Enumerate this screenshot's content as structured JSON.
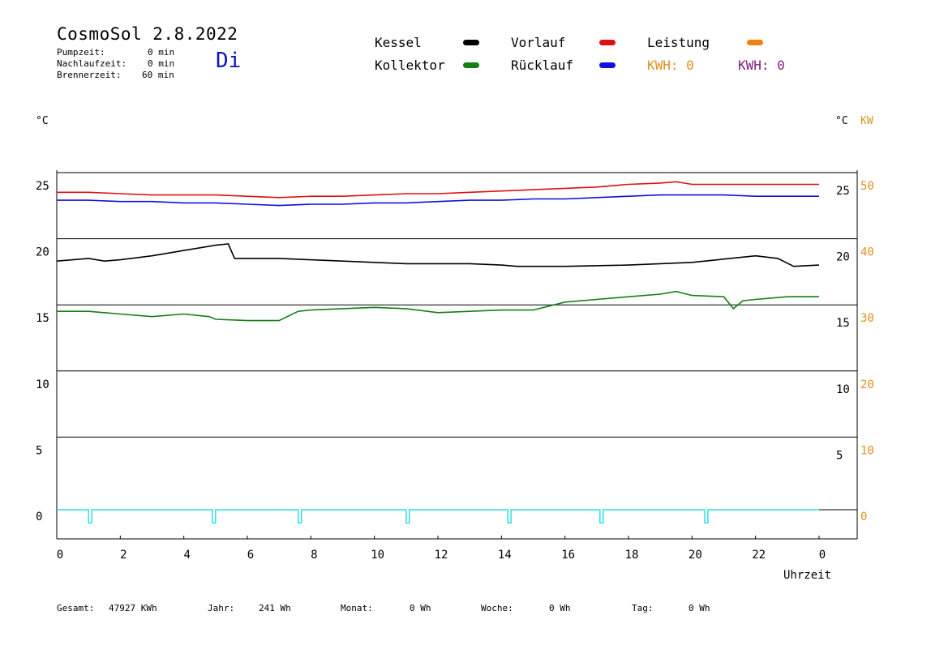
{
  "header": {
    "title": "CosmoSol 2.8.2022",
    "day": "Di",
    "times": [
      {
        "label": "Pumpzeit:",
        "value": "0 min"
      },
      {
        "label": "Nachlaufzeit:",
        "value": "0 min"
      },
      {
        "label": "Brennerzeit:",
        "value": "60 min"
      }
    ]
  },
  "legend": {
    "kessel": "Kessel",
    "kollektor": "Kollektor",
    "vorlauf": "Vorlauf",
    "ruecklauf": "Rücklauf",
    "leistung": "Leistung",
    "kwh1": "KWH: 0",
    "kwh2": "KWH: 0"
  },
  "colors": {
    "kessel": "#000000",
    "kollektor": "#128012",
    "vorlauf": "#e01010",
    "ruecklauf": "#1010e0",
    "leistung": "#f08010",
    "kwh1": "#e09020",
    "kwh2": "#802080",
    "pump": "#20e0e0",
    "day": "#1010c8"
  },
  "units": {
    "left": "°C",
    "right_c": "°C",
    "right_kw": "KW"
  },
  "footer": {
    "gesamt_label": "Gesamt:",
    "gesamt_value": "47927 KWh",
    "jahr_label": "Jahr:",
    "jahr_value": "241 Wh",
    "monat_label": "Monat:",
    "monat_value": "0 Wh",
    "woche_label": "Woche:",
    "woche_value": "0 Wh",
    "tag_label": "Tag:",
    "tag_value": "0 Wh"
  },
  "chart_data": {
    "type": "line",
    "xlabel": "Uhrzeit",
    "x_ticks": [
      "0",
      "2",
      "4",
      "6",
      "8",
      "10",
      "12",
      "14",
      "16",
      "18",
      "20",
      "22",
      "0"
    ],
    "xlim": [
      0,
      24
    ],
    "ylim": [
      -2,
      26
    ],
    "y_left_ticks": [
      0,
      5,
      10,
      15,
      20,
      25
    ],
    "y_right_ticks": [
      5,
      10,
      15,
      20,
      25
    ],
    "y_kw_ticks": [
      0,
      10,
      20,
      30,
      40,
      50
    ],
    "grid": "horizontal",
    "series": [
      {
        "name": "Vorlauf",
        "color": "#e01010",
        "x": [
          0,
          1,
          2,
          3,
          4,
          5,
          6,
          7,
          8,
          9,
          10,
          11,
          12,
          13,
          14,
          15,
          16,
          17,
          18,
          19,
          19.5,
          20,
          21,
          22,
          23,
          24
        ],
        "y": [
          24.0,
          24.0,
          23.9,
          23.8,
          23.8,
          23.8,
          23.7,
          23.6,
          23.7,
          23.7,
          23.8,
          23.9,
          23.9,
          24.0,
          24.1,
          24.2,
          24.3,
          24.4,
          24.6,
          24.7,
          24.8,
          24.6,
          24.6,
          24.6,
          24.6,
          24.6
        ]
      },
      {
        "name": "Rücklauf",
        "color": "#1010e0",
        "x": [
          0,
          1,
          2,
          3,
          4,
          5,
          6,
          7,
          8,
          9,
          10,
          11,
          12,
          13,
          14,
          15,
          16,
          17,
          18,
          19,
          20,
          21,
          22,
          23,
          24
        ],
        "y": [
          23.4,
          23.4,
          23.3,
          23.3,
          23.2,
          23.2,
          23.1,
          23.0,
          23.1,
          23.1,
          23.2,
          23.2,
          23.3,
          23.4,
          23.4,
          23.5,
          23.5,
          23.6,
          23.7,
          23.8,
          23.8,
          23.8,
          23.7,
          23.7,
          23.7
        ]
      },
      {
        "name": "Kessel",
        "color": "#000000",
        "x": [
          0,
          1,
          1.5,
          2,
          3,
          4,
          5,
          5.4,
          5.6,
          6,
          7,
          8,
          9,
          10,
          11,
          12,
          13,
          14,
          14.5,
          16,
          18,
          20,
          22,
          22.7,
          23.2,
          24
        ],
        "y": [
          18.8,
          19.0,
          18.8,
          18.9,
          19.2,
          19.6,
          20.0,
          20.1,
          19.0,
          19.0,
          19.0,
          18.9,
          18.8,
          18.7,
          18.6,
          18.6,
          18.6,
          18.5,
          18.4,
          18.4,
          18.5,
          18.7,
          19.2,
          19.0,
          18.4,
          18.5
        ]
      },
      {
        "name": "Kollektor",
        "color": "#128012",
        "x": [
          0,
          1,
          2,
          3,
          4,
          4.8,
          5,
          6,
          7,
          7.6,
          8,
          9,
          10,
          11,
          12,
          13,
          14,
          15,
          15.5,
          16,
          17,
          18,
          19,
          19.5,
          20,
          21,
          21.3,
          21.6,
          22,
          23,
          24
        ],
        "y": [
          15.0,
          15.0,
          14.8,
          14.6,
          14.8,
          14.6,
          14.4,
          14.3,
          14.3,
          15.0,
          15.1,
          15.2,
          15.3,
          15.2,
          14.9,
          15.0,
          15.1,
          15.1,
          15.4,
          15.7,
          15.9,
          16.1,
          16.3,
          16.5,
          16.2,
          16.1,
          15.2,
          15.8,
          15.9,
          16.1,
          16.1
        ]
      },
      {
        "name": "Pumpe",
        "color": "#20e0e0",
        "x": [
          0,
          1.0,
          1.0,
          1.1,
          1.1,
          4.9,
          4.9,
          5.0,
          5.0,
          7.6,
          7.6,
          7.7,
          7.7,
          11.0,
          11.0,
          11.1,
          11.1,
          14.2,
          14.2,
          14.3,
          14.3,
          17.1,
          17.1,
          17.2,
          17.2,
          20.4,
          20.4,
          20.5,
          20.5,
          24
        ],
        "y": [
          0,
          0,
          -1,
          -1,
          0,
          0,
          -1,
          -1,
          0,
          0,
          -1,
          -1,
          0,
          0,
          -1,
          -1,
          0,
          0,
          -1,
          -1,
          0,
          0,
          -1,
          -1,
          0,
          0,
          -1,
          -1,
          0,
          0
        ]
      }
    ]
  }
}
